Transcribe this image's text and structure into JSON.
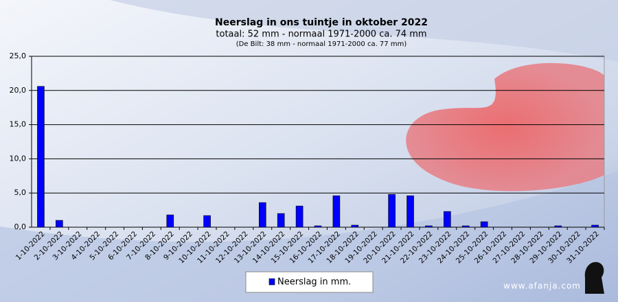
{
  "chart_data": {
    "type": "bar",
    "title": "Neerslag in ons tuintje in oktober 2022",
    "subtitle": "totaal: 52 mm - normaal 1971-2000 ca. 74 mm",
    "note": "(De Bilt: 38 mm - normaal 1971-2000 ca. 77 mm)",
    "categories": [
      "1-10-2022",
      "2-10-2022",
      "3-10-2022",
      "4-10-2022",
      "5-10-2022",
      "6-10-2022",
      "7-10-2022",
      "8-10-2022",
      "9-10-2022",
      "10-10-2022",
      "11-10-2022",
      "12-10-2022",
      "13-10-2022",
      "14-10-2022",
      "15-10-2022",
      "16-10-2022",
      "17-10-2022",
      "18-10-2022",
      "19-10-2022",
      "20-10-2022",
      "21-10-2022",
      "22-10-2022",
      "23-10-2022",
      "24-10-2022",
      "25-10-2022",
      "26-10-2022",
      "27-10-2022",
      "28-10-2022",
      "29-10-2022",
      "30-10-2022",
      "31-10-2022"
    ],
    "series": [
      {
        "name": "Neerslag in mm.",
        "color": "#0000ff",
        "values": [
          20.6,
          1.0,
          0,
          0,
          0,
          0,
          0,
          1.8,
          0,
          1.7,
          0,
          0,
          3.6,
          2.0,
          3.1,
          0.2,
          4.6,
          0.3,
          0,
          4.8,
          4.6,
          0.2,
          2.3,
          0.2,
          0.8,
          0,
          0,
          0,
          0.2,
          0,
          0.3
        ]
      }
    ],
    "ylim": [
      0,
      25
    ],
    "yticks": [
      {
        "value": 0,
        "label": "0,0"
      },
      {
        "value": 5,
        "label": "5,0"
      },
      {
        "value": 10,
        "label": "10,0"
      },
      {
        "value": 15,
        "label": "15,0"
      },
      {
        "value": 20,
        "label": "20,0"
      },
      {
        "value": 25,
        "label": "25,0"
      }
    ],
    "grid": true,
    "legend": "bottom",
    "watermark": "www.afanja.com"
  }
}
